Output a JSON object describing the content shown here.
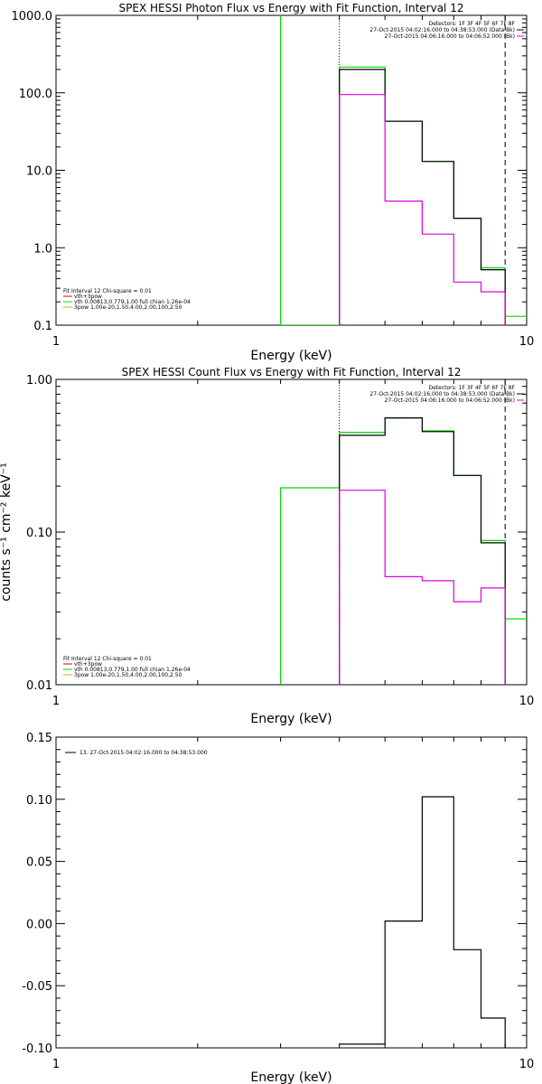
{
  "chart_data": [
    {
      "type": "line",
      "title": "SPEX HESSI Photon Flux vs Energy with Fit Function, Interval 12",
      "xlabel": "Energy (keV)",
      "ylabel": "",
      "xscale": "log",
      "yscale": "log",
      "xlim": [
        1,
        10
      ],
      "ylim": [
        0.1,
        1000
      ],
      "xticks": [
        "1",
        "10"
      ],
      "yticks": [
        "0.1",
        "1.0",
        "10.0",
        "100.0",
        "1000.0"
      ],
      "legend_top": [
        "Detectors: 1F 3F 4F 5F 6F 7F 8F",
        "27-Oct-2015 04:02:16.000 to 04:38:53.000 (Data-Bk)",
        "27-Oct-2015 04:06:16.000 to 04:06:52.000 (Bk)"
      ],
      "legend_bottom": [
        "Fit Interval 12   Chi-square = 0.01",
        "vth+3pow",
        "vth 0.00813,0.779,1.00  full chian 1.26e-04",
        "3pow 1.00e-20,1.50,4.00,2.00,100,2.50"
      ],
      "series": [
        {
          "color": "#00dd00",
          "x": [
            3,
            3,
            4,
            4,
            5,
            5,
            6,
            6,
            7,
            7,
            8,
            8,
            9,
            9,
            10
          ],
          "y": [
            1000,
            0.1,
            0.1,
            215,
            215,
            43,
            43,
            13,
            13,
            2.4,
            2.4,
            0.55,
            0.55,
            0.13,
            0.13
          ]
        },
        {
          "color": "#000000",
          "x": [
            4,
            4,
            5,
            5,
            6,
            6,
            7,
            7,
            8,
            8,
            9,
            9
          ],
          "y": [
            0.1,
            200,
            200,
            43,
            43,
            13,
            13,
            2.4,
            2.4,
            0.52,
            0.52,
            0.1
          ]
        },
        {
          "color": "#dd00dd",
          "x": [
            4,
            4,
            5,
            5,
            6,
            6,
            7,
            7,
            8,
            8,
            9,
            9
          ],
          "y": [
            0.1,
            95,
            95,
            4,
            4,
            1.5,
            1.5,
            0.36,
            0.36,
            0.27,
            0.27,
            0.1
          ]
        }
      ],
      "vlines": [
        {
          "x": 4,
          "style": "dotted",
          "color": "#000000"
        },
        {
          "x": 9,
          "style": "dashed",
          "color": "#000000"
        }
      ]
    },
    {
      "type": "line",
      "title": "SPEX HESSI Count Flux vs Energy with Fit Function, Interval 12",
      "xlabel": "Energy (keV)",
      "ylabel": "counts s⁻¹ cm⁻² keV⁻¹",
      "xscale": "log",
      "yscale": "log",
      "xlim": [
        1,
        10
      ],
      "ylim": [
        0.01,
        1
      ],
      "xticks": [
        "1",
        "10"
      ],
      "yticks": [
        "0.01",
        "0.10",
        "1.00"
      ],
      "legend_top": [
        "Detectors: 1F 3F 4F 5F 6F 7F 8F",
        "27-Oct-2015 04:02:16.000 to 04:38:53.000 (Data-Bk)",
        "27-Oct-2015 04:06:16.000 to 04:06:52.000 (Bk)"
      ],
      "legend_bottom": [
        "Fit Interval 12   Chi-square = 0.01",
        "vth+3pow",
        "vth 0.00813,0.779,1.00  full chian 1.26e-04",
        "3pow 1.00e-20,1.50,4.00,2.00,100,2.50"
      ],
      "series": [
        {
          "color": "#00dd00",
          "x": [
            3,
            3,
            4,
            4,
            5,
            5,
            6,
            6,
            7,
            7,
            8,
            8,
            9,
            9,
            10
          ],
          "y": [
            0.01,
            0.195,
            0.195,
            0.45,
            0.45,
            0.56,
            0.56,
            0.46,
            0.46,
            0.235,
            0.235,
            0.088,
            0.088,
            0.027,
            0.027
          ]
        },
        {
          "color": "#000000",
          "x": [
            4,
            4,
            5,
            5,
            6,
            6,
            7,
            7,
            8,
            8,
            9,
            9
          ],
          "y": [
            0.01,
            0.43,
            0.43,
            0.56,
            0.56,
            0.455,
            0.455,
            0.235,
            0.235,
            0.085,
            0.085,
            0.01
          ]
        },
        {
          "color": "#dd00dd",
          "x": [
            4,
            4,
            5,
            5,
            6,
            6,
            7,
            7,
            8,
            8,
            9,
            9
          ],
          "y": [
            0.01,
            0.188,
            0.188,
            0.051,
            0.051,
            0.048,
            0.048,
            0.035,
            0.035,
            0.043,
            0.043,
            0.01
          ]
        }
      ],
      "vlines": [
        {
          "x": 4,
          "style": "dotted",
          "color": "#000000"
        },
        {
          "x": 9,
          "style": "dashed",
          "color": "#000000"
        }
      ]
    },
    {
      "type": "line",
      "title": "",
      "xlabel": "Energy (keV)",
      "ylabel": "",
      "xscale": "log",
      "yscale": "linear",
      "xlim": [
        1,
        10
      ],
      "ylim": [
        -0.1,
        0.15
      ],
      "xticks": [
        "1",
        "10"
      ],
      "yticks": [
        "-0.10",
        "-0.05",
        "0.00",
        "0.05",
        "0.10",
        "0.15"
      ],
      "legend_top": [
        "13. 27-Oct-2015 04:02:16.000 to 04:38:53.000"
      ],
      "series": [
        {
          "color": "#000000",
          "x": [
            4,
            5,
            5,
            6,
            6,
            7,
            7,
            8,
            8,
            9,
            9
          ],
          "y": [
            -0.097,
            -0.097,
            0.002,
            0.002,
            0.102,
            0.102,
            -0.021,
            -0.021,
            -0.076,
            -0.076,
            -0.1
          ]
        }
      ]
    }
  ]
}
